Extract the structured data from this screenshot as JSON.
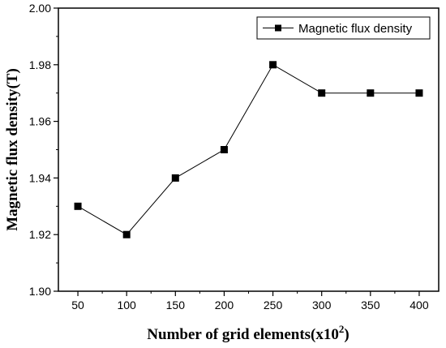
{
  "chart_data": {
    "type": "line",
    "x": [
      50,
      100,
      150,
      200,
      250,
      300,
      350,
      400
    ],
    "series": [
      {
        "name": "Magnetic flux density",
        "values": [
          1.93,
          1.92,
          1.94,
          1.95,
          1.98,
          1.97,
          1.97,
          1.97
        ],
        "color": "#000000",
        "marker": "square"
      }
    ],
    "xlabel": "Number of grid elements(x10",
    "xlabel_sup": "2",
    "xlabel_close": ")",
    "ylabel": "Magnetic flux density(T)",
    "xlim": [
      30,
      420
    ],
    "ylim": [
      1.9,
      2.0
    ],
    "xticks": [
      50,
      100,
      150,
      200,
      250,
      300,
      350,
      400
    ],
    "yticks": [
      1.9,
      1.92,
      1.94,
      1.96,
      1.98,
      2.0
    ],
    "ytick_labels": [
      "1.90",
      "1.92",
      "1.94",
      "1.96",
      "1.98",
      "2.00"
    ],
    "legend_position": "top-right",
    "grid": false
  }
}
